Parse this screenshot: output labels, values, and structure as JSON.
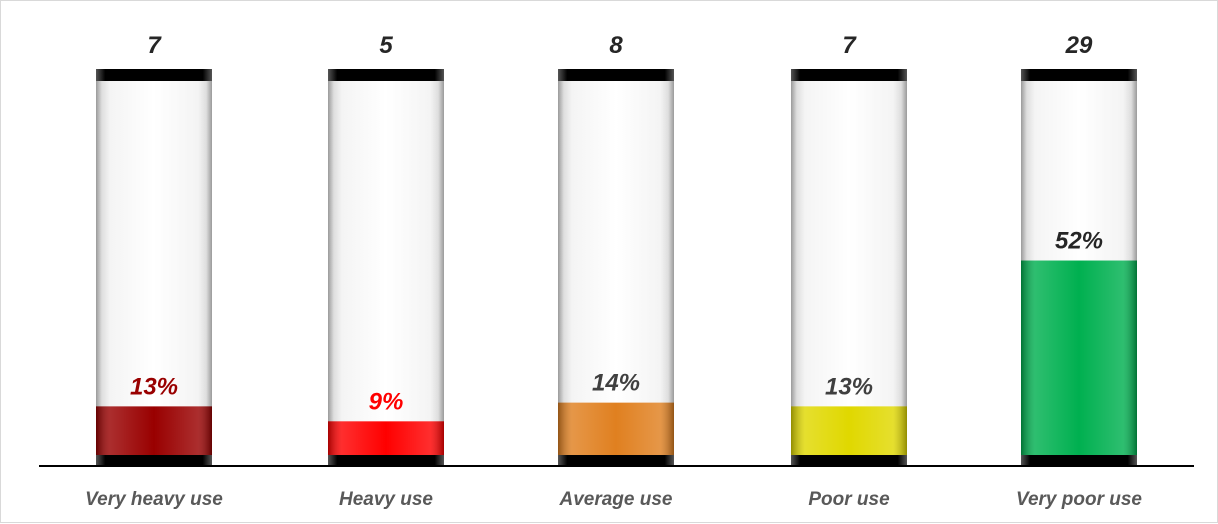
{
  "chart_data": {
    "type": "bar",
    "categories": [
      "Very heavy use",
      "Heavy use",
      "Average use",
      "Poor use",
      "Very poor use"
    ],
    "counts": [
      "7",
      "5",
      "8",
      "7",
      "29"
    ],
    "percent_labels": [
      "13%",
      "9%",
      "14%",
      "13%",
      "52%"
    ],
    "values": [
      13,
      9,
      14,
      13,
      52
    ],
    "ylim": [
      0,
      100
    ],
    "bar_colors": [
      "#990000",
      "#ff0000",
      "#e08020",
      "#e0d800",
      "#00b050"
    ],
    "percent_label_colors": [
      "#990000",
      "#ff0000",
      "#404040",
      "#404040",
      "#262626"
    ],
    "grid": false,
    "legend": "none"
  }
}
